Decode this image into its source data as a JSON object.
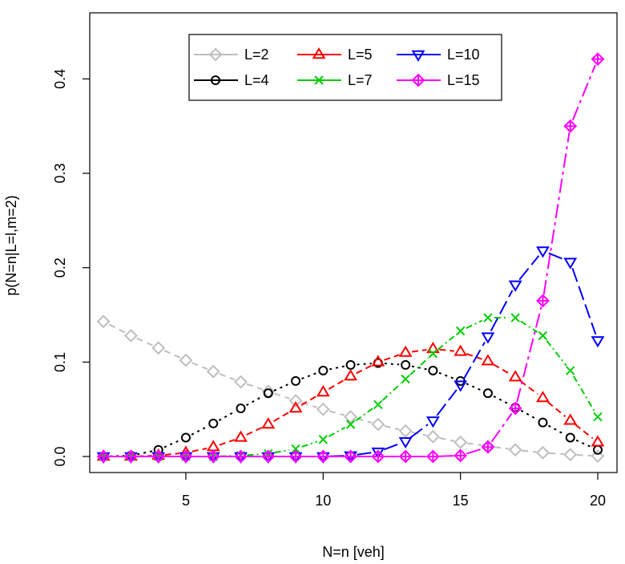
{
  "chart_data": {
    "type": "line",
    "title": "",
    "xlabel": "N=n [veh]",
    "ylabel": "p(N=n|L=l,m=2)",
    "xlim": [
      1.5,
      20.7
    ],
    "ylim": [
      -0.017,
      0.47
    ],
    "xticks": [
      5,
      10,
      15,
      20
    ],
    "yticks": [
      0.0,
      0.1,
      0.2,
      0.3,
      0.4
    ],
    "ytick_labels": [
      "0.0",
      "0.1",
      "0.2",
      "0.3",
      "0.4"
    ],
    "grid": false,
    "legend_position": "top-center",
    "x": [
      2,
      3,
      4,
      5,
      6,
      7,
      8,
      9,
      10,
      11,
      12,
      13,
      14,
      15,
      16,
      17,
      18,
      19,
      20
    ],
    "series": [
      {
        "name": "L=2",
        "color": "#bebebe",
        "marker": "diamond",
        "dash": "8,6",
        "values": [
          0.143,
          0.128,
          0.115,
          0.102,
          0.09,
          0.079,
          0.069,
          0.059,
          0.05,
          0.042,
          0.034,
          0.027,
          0.021,
          0.015,
          0.011,
          0.007,
          0.004,
          0.002,
          0.0005
        ]
      },
      {
        "name": "L=4",
        "color": "#000000",
        "marker": "circle",
        "dash": "3,5",
        "values": [
          0.0,
          0.001,
          0.007,
          0.02,
          0.035,
          0.051,
          0.067,
          0.08,
          0.091,
          0.097,
          0.099,
          0.097,
          0.091,
          0.08,
          0.067,
          0.052,
          0.036,
          0.02,
          0.007
        ]
      },
      {
        "name": "L=5",
        "color": "#ff0000",
        "marker": "triangle-up",
        "dash": "8,5",
        "values": [
          0.0,
          0.0,
          0.001,
          0.004,
          0.01,
          0.02,
          0.034,
          0.051,
          0.068,
          0.085,
          0.1,
          0.11,
          0.114,
          0.111,
          0.101,
          0.084,
          0.062,
          0.038,
          0.015
        ]
      },
      {
        "name": "L=7",
        "color": "#00cd00",
        "marker": "cross",
        "dash": "8,4,2,4",
        "values": [
          0.0,
          0.0,
          0.0,
          0.0,
          0.0,
          0.001,
          0.003,
          0.008,
          0.018,
          0.034,
          0.055,
          0.082,
          0.109,
          0.133,
          0.147,
          0.147,
          0.128,
          0.091,
          0.042
        ]
      },
      {
        "name": "L=10",
        "color": "#0000ff",
        "marker": "triangle-down",
        "dash": "18,6",
        "values": [
          0.0,
          0.0,
          0.0,
          0.0,
          0.0,
          0.0,
          0.0,
          0.0,
          0.0,
          0.001,
          0.005,
          0.016,
          0.038,
          0.076,
          0.127,
          0.182,
          0.218,
          0.206,
          0.123
        ]
      },
      {
        "name": "L=15",
        "color": "#ff00ff",
        "marker": "diamond-plus",
        "dash": "18,5,4,5",
        "values": [
          0.0,
          0.0,
          0.0,
          0.0,
          0.0,
          0.0,
          0.0,
          0.0,
          0.0,
          0.0,
          0.0,
          0.0,
          0.0,
          0.001,
          0.01,
          0.051,
          0.165,
          0.35,
          0.421
        ]
      }
    ]
  }
}
